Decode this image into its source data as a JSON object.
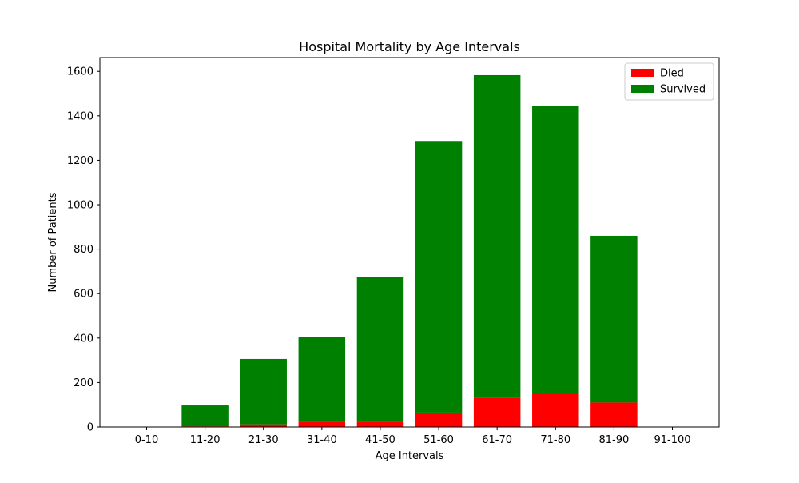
{
  "chart_data": {
    "type": "bar",
    "stacked": true,
    "title": "Hospital Mortality by Age Intervals",
    "xlabel": "Age Intervals",
    "ylabel": "Number of Patients",
    "categories": [
      "0-10",
      "11-20",
      "21-30",
      "31-40",
      "41-50",
      "51-60",
      "61-70",
      "71-80",
      "81-90",
      "91-100"
    ],
    "series": [
      {
        "name": "Died",
        "color": "#ff0000",
        "values": [
          0,
          3,
          12,
          22,
          22,
          65,
          130,
          152,
          110,
          0
        ]
      },
      {
        "name": "Survived",
        "color": "#008000",
        "values": [
          0,
          94,
          294,
          381,
          651,
          1222,
          1453,
          1294,
          750,
          0
        ]
      }
    ],
    "ylim": [
      0,
      1662
    ],
    "yticks": [
      0,
      200,
      400,
      600,
      800,
      1000,
      1200,
      1400,
      1600
    ],
    "grid": false,
    "legend_position": "top-right"
  }
}
